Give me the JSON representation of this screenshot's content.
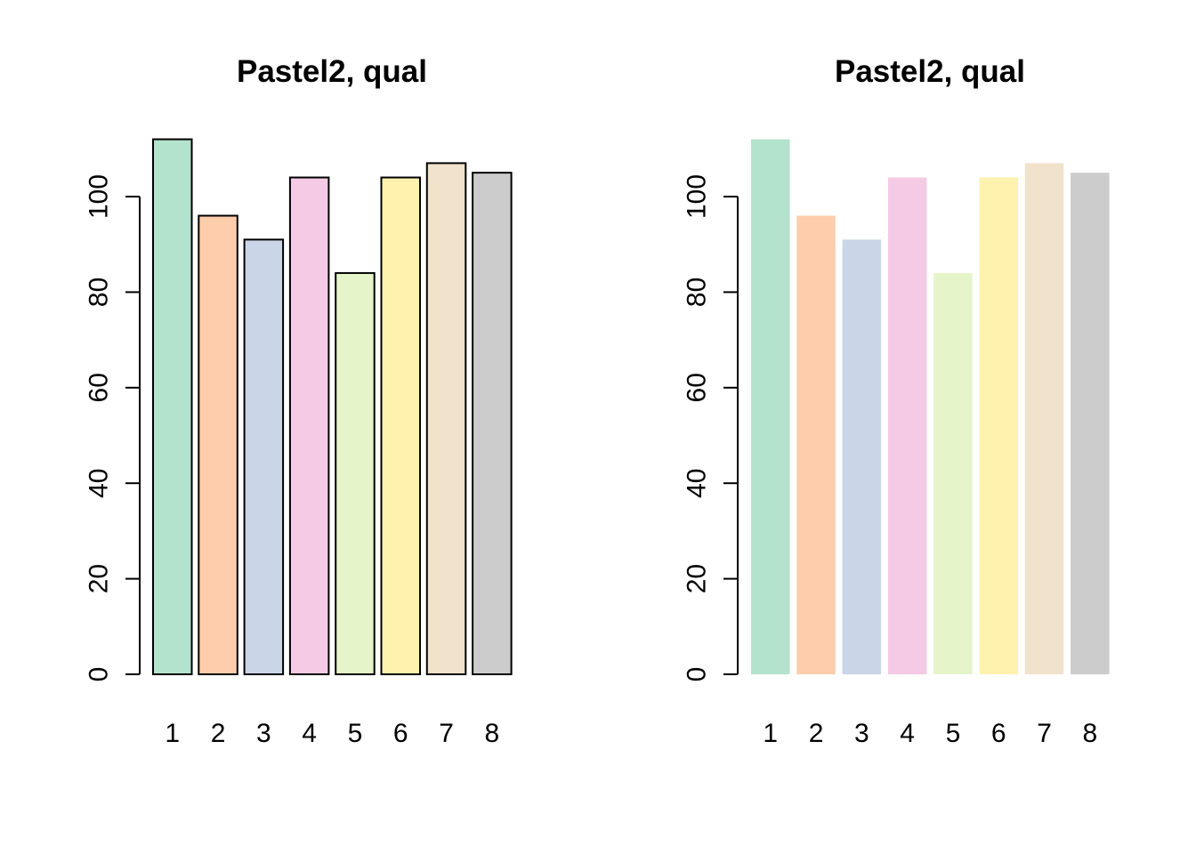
{
  "chart_data": [
    {
      "type": "bar",
      "title": "Pastel2, qual",
      "categories": [
        "1",
        "2",
        "3",
        "4",
        "5",
        "6",
        "7",
        "8"
      ],
      "values": [
        112,
        96,
        91,
        104,
        84,
        104,
        107,
        105
      ],
      "colors": [
        "#B3E2CD",
        "#FDCDAC",
        "#CBD5E8",
        "#F4CAE4",
        "#E6F5C9",
        "#FFF2AE",
        "#F1E2CC",
        "#CCCCCC"
      ],
      "bar_border": true,
      "ylim": [
        0,
        112
      ],
      "yticks": [
        0,
        20,
        40,
        60,
        80,
        100
      ],
      "xlabel": "",
      "ylabel": ""
    },
    {
      "type": "bar",
      "title": "Pastel2, qual",
      "categories": [
        "1",
        "2",
        "3",
        "4",
        "5",
        "6",
        "7",
        "8"
      ],
      "values": [
        112,
        96,
        91,
        104,
        84,
        104,
        107,
        105
      ],
      "colors": [
        "#B3E2CD",
        "#FDCDAC",
        "#CBD5E8",
        "#F4CAE4",
        "#E6F5C9",
        "#FFF2AE",
        "#F1E2CC",
        "#CCCCCC"
      ],
      "bar_border": false,
      "ylim": [
        0,
        112
      ],
      "yticks": [
        0,
        20,
        40,
        60,
        80,
        100
      ],
      "xlabel": "",
      "ylabel": ""
    }
  ]
}
